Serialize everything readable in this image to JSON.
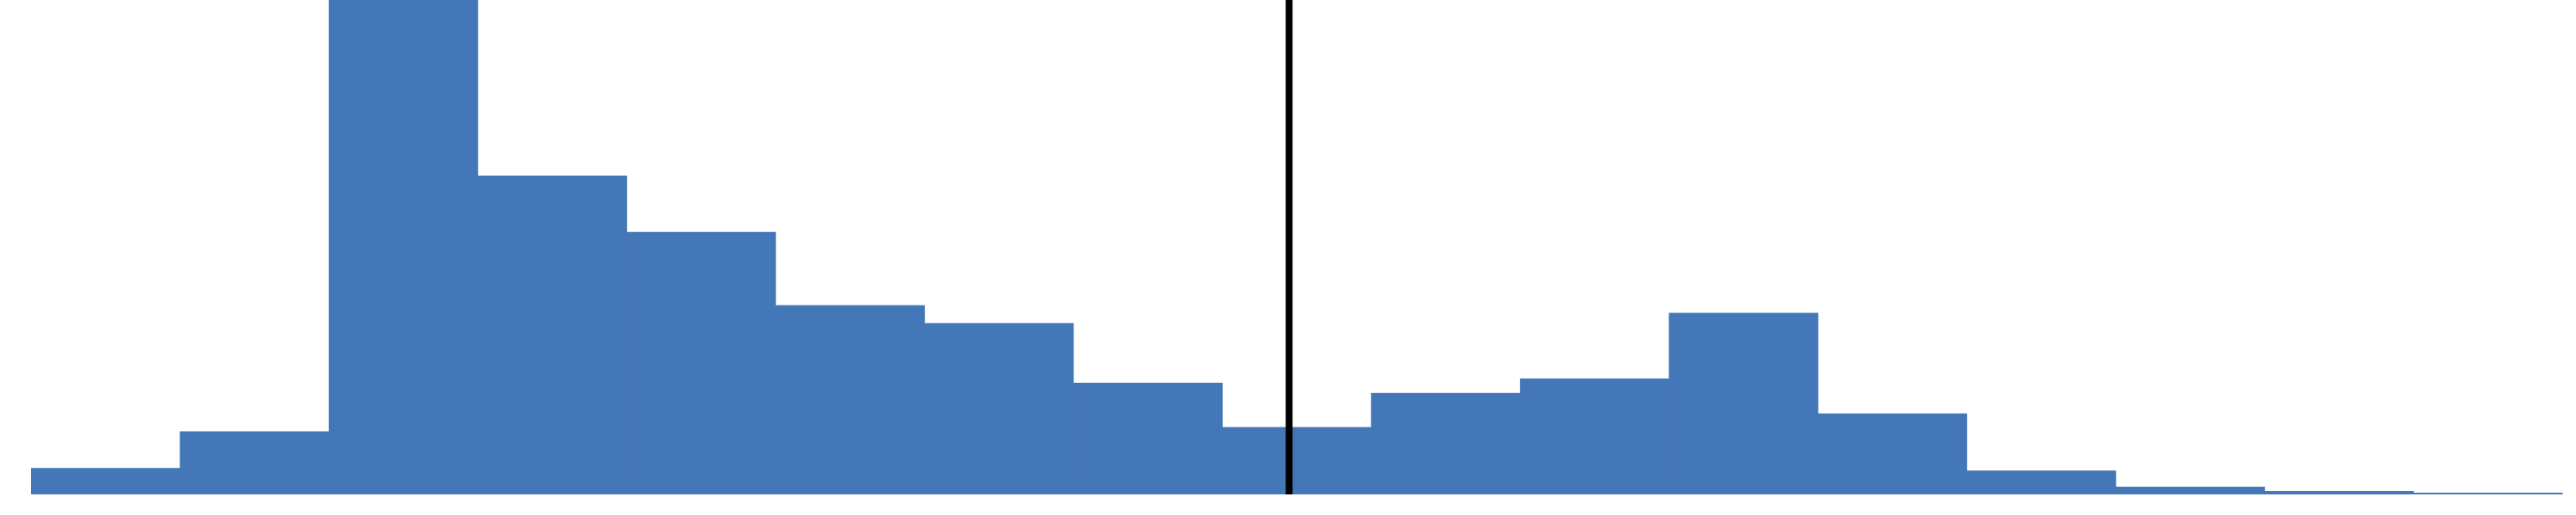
{
  "chart_data": {
    "type": "bar",
    "subtype": "histogram",
    "title": "",
    "xlabel": "",
    "ylabel": "",
    "bins": 17,
    "values": [
      31,
      74,
      580,
      374,
      308,
      222,
      201,
      131,
      79,
      119,
      136,
      213,
      95,
      28,
      9,
      4,
      2
    ],
    "ylim": [
      0,
      580
    ],
    "reference_line": {
      "bin_position": 8.45
    },
    "grid": false,
    "legend": "none",
    "colors": {
      "bar": "#4477B7",
      "reference_line": "#000000"
    }
  }
}
